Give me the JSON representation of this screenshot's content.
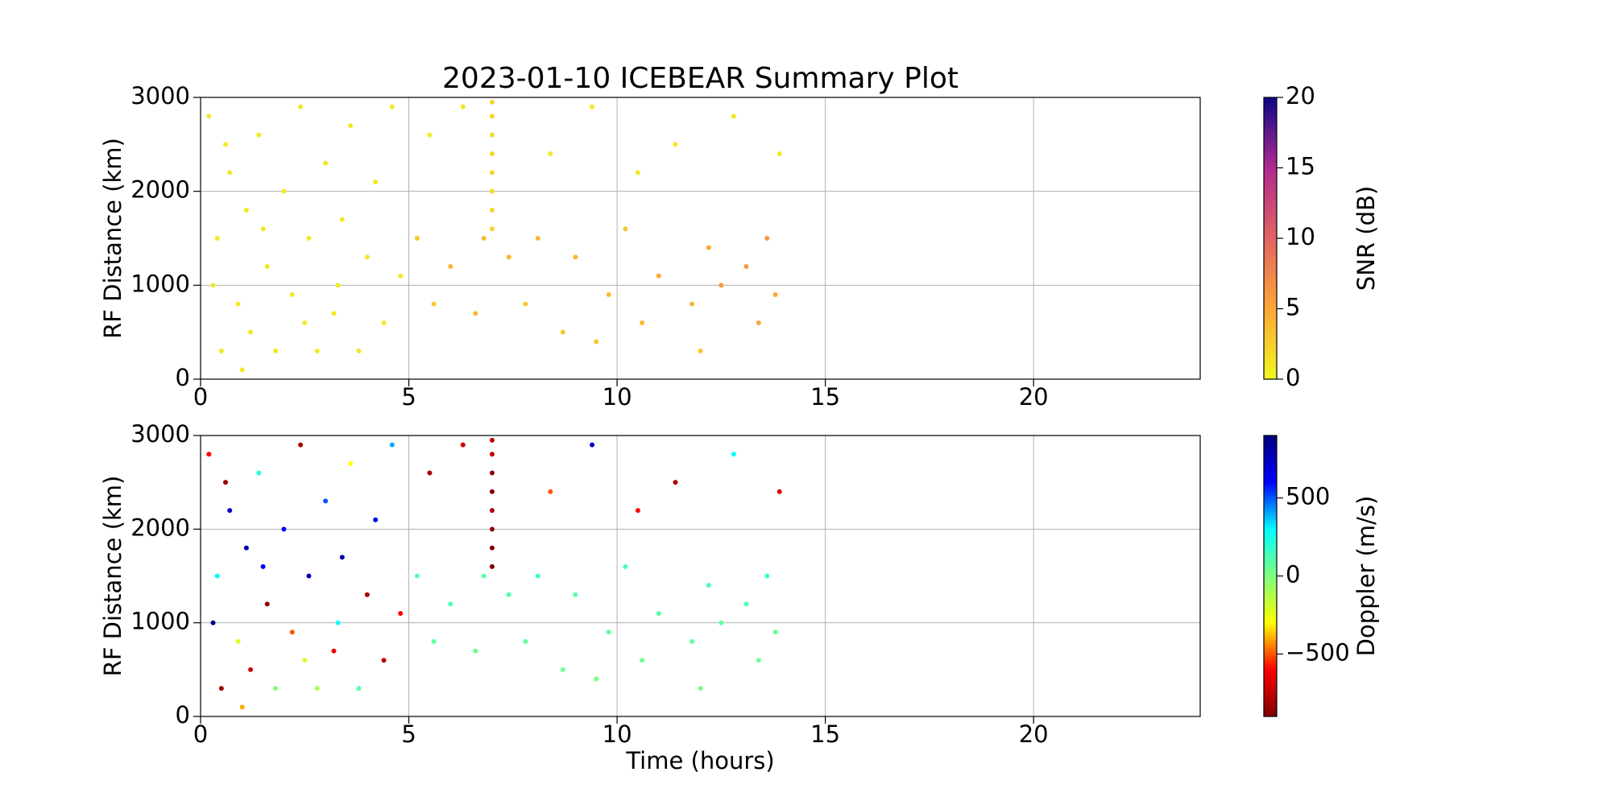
{
  "chart_data": [
    {
      "type": "scatter",
      "title": "2023-01-10 ICEBEAR Summary Plot",
      "ylabel": "RF Distance (km)",
      "x": [
        0.2,
        0.4,
        0.5,
        0.7,
        0.9,
        1.1,
        1.2,
        1.4,
        1.6,
        1.8,
        2.0,
        2.2,
        2.4,
        2.6,
        2.8,
        3.0,
        3.2,
        3.4,
        3.6,
        3.8,
        4.0,
        4.2,
        4.4,
        4.6,
        4.8,
        0.3,
        0.6,
        1.0,
        1.5,
        2.5,
        3.3,
        5.2,
        5.6,
        6.0,
        6.3,
        6.6,
        7,
        7,
        7,
        7,
        7,
        7,
        7,
        7,
        7.4,
        7.8,
        8.1,
        8.4,
        8.7,
        9.0,
        9.4,
        9.8,
        10.2,
        10.6,
        11.0,
        11.4,
        11.8,
        12.2,
        12.5,
        12.8,
        13.1,
        13.4,
        13.6,
        13.9,
        13.8,
        12.0,
        10.5,
        9.5,
        6.8,
        5.5
      ],
      "y": [
        2800,
        1500,
        300,
        2200,
        800,
        1800,
        500,
        2600,
        1200,
        300,
        2000,
        900,
        2900,
        1500,
        300,
        2300,
        700,
        1700,
        2700,
        300,
        1300,
        2100,
        600,
        2900,
        1100,
        1000,
        2500,
        100,
        1600,
        600,
        1000,
        1500,
        800,
        1200,
        2900,
        700,
        1600,
        1800,
        2000,
        2200,
        2400,
        2600,
        2800,
        2950,
        1300,
        800,
        1500,
        2400,
        500,
        1300,
        2900,
        900,
        1600,
        600,
        1100,
        2500,
        800,
        1400,
        1000,
        2800,
        1200,
        600,
        1500,
        2400,
        900,
        300,
        2200,
        400,
        1500,
        2600
      ],
      "c": [
        1,
        1,
        1,
        1,
        1,
        1,
        1,
        1,
        1,
        1,
        1,
        1,
        1,
        1,
        1,
        1,
        1,
        1,
        1,
        1,
        1,
        1,
        1,
        1,
        1,
        1,
        1,
        1,
        1,
        1,
        1,
        3,
        3,
        4,
        1,
        4,
        2,
        2,
        2,
        2,
        2,
        2,
        2,
        2,
        4,
        3,
        4,
        1,
        3,
        4,
        1,
        4,
        3,
        4,
        5,
        1,
        4,
        5,
        6,
        1,
        6,
        5,
        6,
        1,
        5,
        3,
        1,
        3,
        4,
        1
      ],
      "xlim": [
        0,
        24
      ],
      "ylim": [
        0,
        3000
      ],
      "xticks": [
        0,
        5,
        10,
        15,
        20
      ],
      "yticks": [
        0,
        1000,
        2000,
        3000
      ],
      "grid": true,
      "colorbar": {
        "label": "SNR (dB)",
        "lim": [
          0,
          20
        ],
        "ticks": [
          0,
          5,
          10,
          15,
          20
        ],
        "colormap": [
          "#f0f921",
          "#fca636",
          "#e16462",
          "#b12a90",
          "#0d0887"
        ]
      }
    },
    {
      "type": "scatter",
      "ylabel": "RF Distance (km)",
      "xlabel": "Time (hours)",
      "x": [
        0.2,
        0.4,
        0.5,
        0.7,
        0.9,
        1.1,
        1.2,
        1.4,
        1.6,
        1.8,
        2.0,
        2.2,
        2.4,
        2.6,
        2.8,
        3.0,
        3.2,
        3.4,
        3.6,
        3.8,
        4.0,
        4.2,
        4.4,
        4.6,
        4.8,
        0.3,
        0.6,
        1.0,
        1.5,
        2.5,
        3.3,
        5.2,
        5.6,
        6.0,
        6.3,
        6.6,
        7,
        7,
        7,
        7,
        7,
        7,
        7,
        7,
        7.4,
        7.8,
        8.1,
        8.4,
        8.7,
        9.0,
        9.4,
        9.8,
        10.2,
        10.6,
        11.0,
        11.4,
        11.8,
        12.2,
        12.5,
        12.8,
        13.1,
        13.4,
        13.6,
        13.9,
        13.8,
        12.0,
        10.5,
        9.5,
        6.8,
        5.5
      ],
      "y": [
        2800,
        1500,
        300,
        2200,
        800,
        1800,
        500,
        2600,
        1200,
        300,
        2000,
        900,
        2900,
        1500,
        300,
        2300,
        700,
        1700,
        2700,
        300,
        1300,
        2100,
        600,
        2900,
        1100,
        1000,
        2500,
        100,
        1600,
        600,
        1000,
        1500,
        800,
        1200,
        2900,
        700,
        1600,
        1800,
        2000,
        2200,
        2400,
        2600,
        2800,
        2950,
        1300,
        800,
        1500,
        2400,
        500,
        1300,
        2900,
        900,
        1600,
        600,
        1100,
        2500,
        800,
        1400,
        1000,
        2800,
        1200,
        600,
        1500,
        2400,
        900,
        300,
        2200,
        400,
        1500,
        2600
      ],
      "c": [
        -600,
        300,
        -800,
        700,
        -200,
        800,
        -700,
        200,
        -850,
        0,
        600,
        -500,
        -800,
        750,
        -100,
        500,
        -650,
        800,
        -300,
        100,
        -800,
        650,
        -750,
        400,
        -600,
        850,
        -850,
        -400,
        600,
        -200,
        300,
        100,
        80,
        120,
        -700,
        50,
        -900,
        -900,
        -850,
        -800,
        -900,
        -850,
        -750,
        -750,
        100,
        60,
        150,
        -500,
        30,
        90,
        700,
        70,
        120,
        40,
        100,
        -800,
        60,
        130,
        80,
        300,
        110,
        50,
        150,
        -700,
        70,
        20,
        -600,
        10,
        90,
        -800
      ],
      "xlim": [
        0,
        24
      ],
      "ylim": [
        0,
        3000
      ],
      "xticks": [
        0,
        5,
        10,
        15,
        20
      ],
      "yticks": [
        0,
        1000,
        2000,
        3000
      ],
      "grid": true,
      "colorbar": {
        "label": "Doppler (m/s)",
        "lim": [
          -900,
          900
        ],
        "ticks": [
          {
            "value": -500,
            "label": "−500"
          },
          0,
          500
        ],
        "colormap": [
          "#800000",
          "#ff0000",
          "#ffff00",
          "#80ff80",
          "#00ffff",
          "#0000ff",
          "#000080"
        ]
      }
    }
  ]
}
